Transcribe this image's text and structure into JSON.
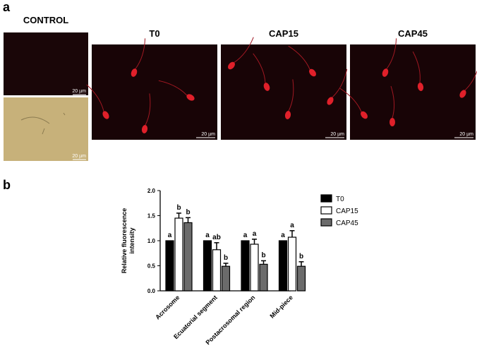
{
  "panel_a": {
    "label": "a",
    "control_title": "CONTROL",
    "control_scales": [
      "20 µm",
      "20 µm"
    ],
    "images": [
      {
        "title": "T0",
        "scale": "20 µm"
      },
      {
        "title": "CAP15",
        "scale": "20 µm"
      },
      {
        "title": "CAP45",
        "scale": "20 µm"
      }
    ]
  },
  "panel_b": {
    "label": "b"
  },
  "chart_data": {
    "type": "bar",
    "ylabel": [
      "Relative fluorescence",
      "intensity"
    ],
    "categories": [
      "Acrosome",
      "Ecuatorial segment",
      "Postacrosomal region",
      "Mid-piece"
    ],
    "series": [
      {
        "name": "T0",
        "color": "#000000",
        "values": [
          1,
          1,
          1,
          1
        ],
        "labels": [
          "a",
          "a",
          "a",
          "a"
        ]
      },
      {
        "name": "CAP15",
        "color": "#ffffff",
        "values": [
          1.45,
          0.82,
          0.93,
          1.07
        ],
        "errors": [
          0.1,
          0.14,
          0.1,
          0.13
        ],
        "labels": [
          "b",
          "ab",
          "a",
          "a"
        ]
      },
      {
        "name": "CAP45",
        "color": "#6b6b6b",
        "values": [
          1.36,
          0.49,
          0.53,
          0.49
        ],
        "errors": [
          0.1,
          0.06,
          0.07,
          0.09
        ],
        "labels": [
          "b",
          "b",
          "b",
          "b"
        ]
      }
    ],
    "ylim": [
      0,
      2
    ],
    "yticks": [
      {
        "value": 0,
        "label": "0.0"
      },
      0.5,
      {
        "value": 1,
        "label": "1.0"
      },
      1.5,
      {
        "value": 2,
        "label": "2.0"
      }
    ],
    "legend": "right"
  }
}
